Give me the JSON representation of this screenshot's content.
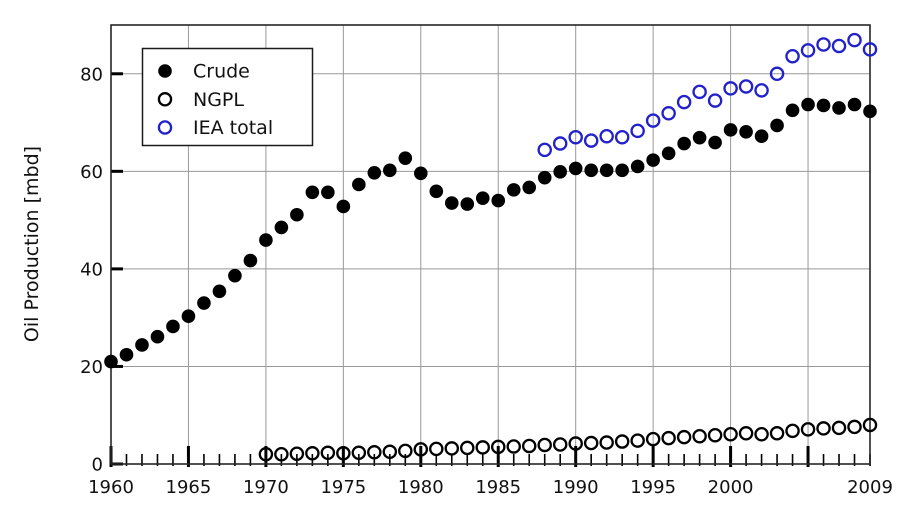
{
  "figure": {
    "background": "#ffffff",
    "description": "Scatter chart of world oil production 1960-2009"
  },
  "chart_data": {
    "type": "scatter",
    "title": "",
    "xlabel": "",
    "ylabel": "Oil Production [mbd]",
    "xlim": [
      1960,
      2009
    ],
    "ylim": [
      0,
      90
    ],
    "grid": {
      "on": true,
      "color": "#999999",
      "x_years": [
        1965,
        1970,
        1975,
        1980,
        1985,
        1990,
        1995,
        2000,
        2005
      ],
      "y_values": [
        20,
        40,
        60,
        80
      ]
    },
    "x_major_ticks": [
      1960,
      1965,
      1970,
      1975,
      1980,
      1985,
      1990,
      1995,
      2000,
      2005
    ],
    "x_minor_tick_step": 1,
    "x_tick_labels": [
      {
        "year": 1960,
        "label": "1960"
      },
      {
        "year": 1965,
        "label": "1965"
      },
      {
        "year": 1970,
        "label": "1970"
      },
      {
        "year": 1975,
        "label": "1975"
      },
      {
        "year": 1980,
        "label": "1980"
      },
      {
        "year": 1985,
        "label": "1985"
      },
      {
        "year": 1990,
        "label": "1990"
      },
      {
        "year": 1995,
        "label": "1995"
      },
      {
        "year": 2000,
        "label": "2000"
      },
      {
        "year": 2009,
        "label": "2009"
      }
    ],
    "y_ticks": [
      {
        "value": 0,
        "label": "0"
      },
      {
        "value": 20,
        "label": "20"
      },
      {
        "value": 40,
        "label": "40"
      },
      {
        "value": 60,
        "label": "60"
      },
      {
        "value": 80,
        "label": "80"
      }
    ],
    "legend": {
      "position": "upper-left",
      "entries": [
        "Crude",
        "NGPL",
        "IEA total"
      ]
    },
    "series": [
      {
        "name": "Crude",
        "marker": "filled-circle",
        "color": "#000000",
        "x_start": 1960,
        "x_step": 1,
        "values": [
          21.0,
          22.4,
          24.4,
          26.1,
          28.2,
          30.3,
          33.0,
          35.4,
          38.6,
          41.7,
          45.9,
          48.5,
          51.1,
          55.7,
          55.7,
          52.8,
          57.3,
          59.7,
          60.2,
          62.7,
          59.6,
          55.9,
          53.5,
          53.3,
          54.5,
          54.0,
          56.2,
          56.7,
          58.7,
          59.9,
          60.6,
          60.2,
          60.2,
          60.2,
          61.0,
          62.3,
          63.7,
          65.7,
          66.9,
          65.9,
          68.5,
          68.1,
          67.2,
          69.4,
          72.5,
          73.7,
          73.5,
          73.0,
          73.7,
          72.3
        ]
      },
      {
        "name": "NGPL",
        "marker": "open-circle",
        "color": "#000000",
        "x_start": 1970,
        "x_step": 1,
        "values": [
          2.0,
          2.0,
          2.1,
          2.2,
          2.3,
          2.2,
          2.3,
          2.4,
          2.5,
          2.7,
          3.0,
          3.1,
          3.2,
          3.3,
          3.4,
          3.5,
          3.6,
          3.7,
          3.9,
          4.0,
          4.2,
          4.3,
          4.4,
          4.6,
          4.8,
          5.1,
          5.3,
          5.5,
          5.7,
          5.9,
          6.1,
          6.3,
          6.1,
          6.3,
          6.8,
          7.1,
          7.3,
          7.4,
          7.6,
          8.0
        ]
      },
      {
        "name": "IEA total",
        "marker": "open-circle",
        "color": "#2121cc",
        "x_start": 1988,
        "x_step": 1,
        "values": [
          64.4,
          65.7,
          67.0,
          66.3,
          67.2,
          67.0,
          68.3,
          70.4,
          71.9,
          74.2,
          76.3,
          74.5,
          77.0,
          77.4,
          76.6,
          80.0,
          83.6,
          84.8,
          86.0,
          85.7,
          86.9,
          85.0
        ]
      }
    ]
  }
}
